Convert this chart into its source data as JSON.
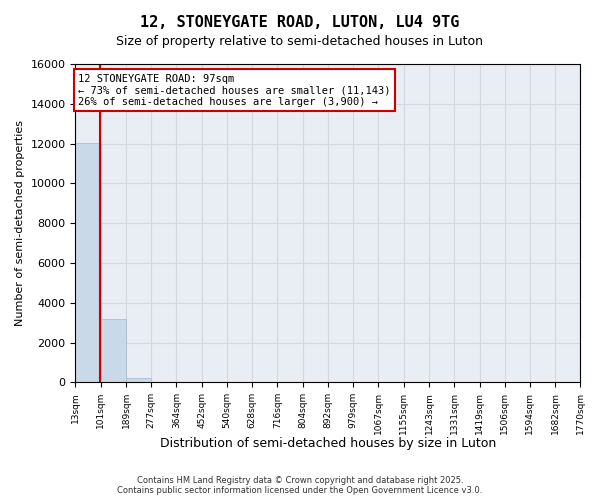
{
  "title_line1": "12, STONEYGATE ROAD, LUTON, LU4 9TG",
  "title_line2": "Size of property relative to semi-detached houses in Luton",
  "xlabel": "Distribution of semi-detached houses by size in Luton",
  "ylabel": "Number of semi-detached properties",
  "bin_edges": [
    13,
    101,
    189,
    277,
    364,
    452,
    540,
    628,
    716,
    804,
    892,
    979,
    1067,
    1155,
    1243,
    1331,
    1419,
    1506,
    1594,
    1682,
    1770
  ],
  "bin_labels": [
    "13sqm",
    "101sqm",
    "189sqm",
    "277sqm",
    "364sqm",
    "452sqm",
    "540sqm",
    "628sqm",
    "716sqm",
    "804sqm",
    "892sqm",
    "979sqm",
    "1067sqm",
    "1155sqm",
    "1243sqm",
    "1331sqm",
    "1419sqm",
    "1506sqm",
    "1594sqm",
    "1682sqm",
    "1770sqm"
  ],
  "counts": [
    12050,
    3200,
    200,
    0,
    0,
    0,
    0,
    0,
    0,
    0,
    0,
    0,
    0,
    0,
    0,
    0,
    0,
    0,
    0,
    0
  ],
  "bar_color": "#c9d9e8",
  "bar_edge_color": "#a0b8cc",
  "ylim": [
    0,
    16000
  ],
  "yticks": [
    0,
    2000,
    4000,
    6000,
    8000,
    10000,
    12000,
    14000,
    16000
  ],
  "property_size": 97,
  "property_label": "12 STONEYGATE ROAD: 97sqm",
  "pct_smaller": 73,
  "count_smaller": 11143,
  "pct_larger": 26,
  "count_larger": 3900,
  "vline_color": "#cc0000",
  "annotation_box_color": "#cc0000",
  "grid_color": "#d0d8e0",
  "background_color": "#e8eef4",
  "footnote": "Contains HM Land Registry data © Crown copyright and database right 2025.\nContains public sector information licensed under the Open Government Licence v3.0."
}
